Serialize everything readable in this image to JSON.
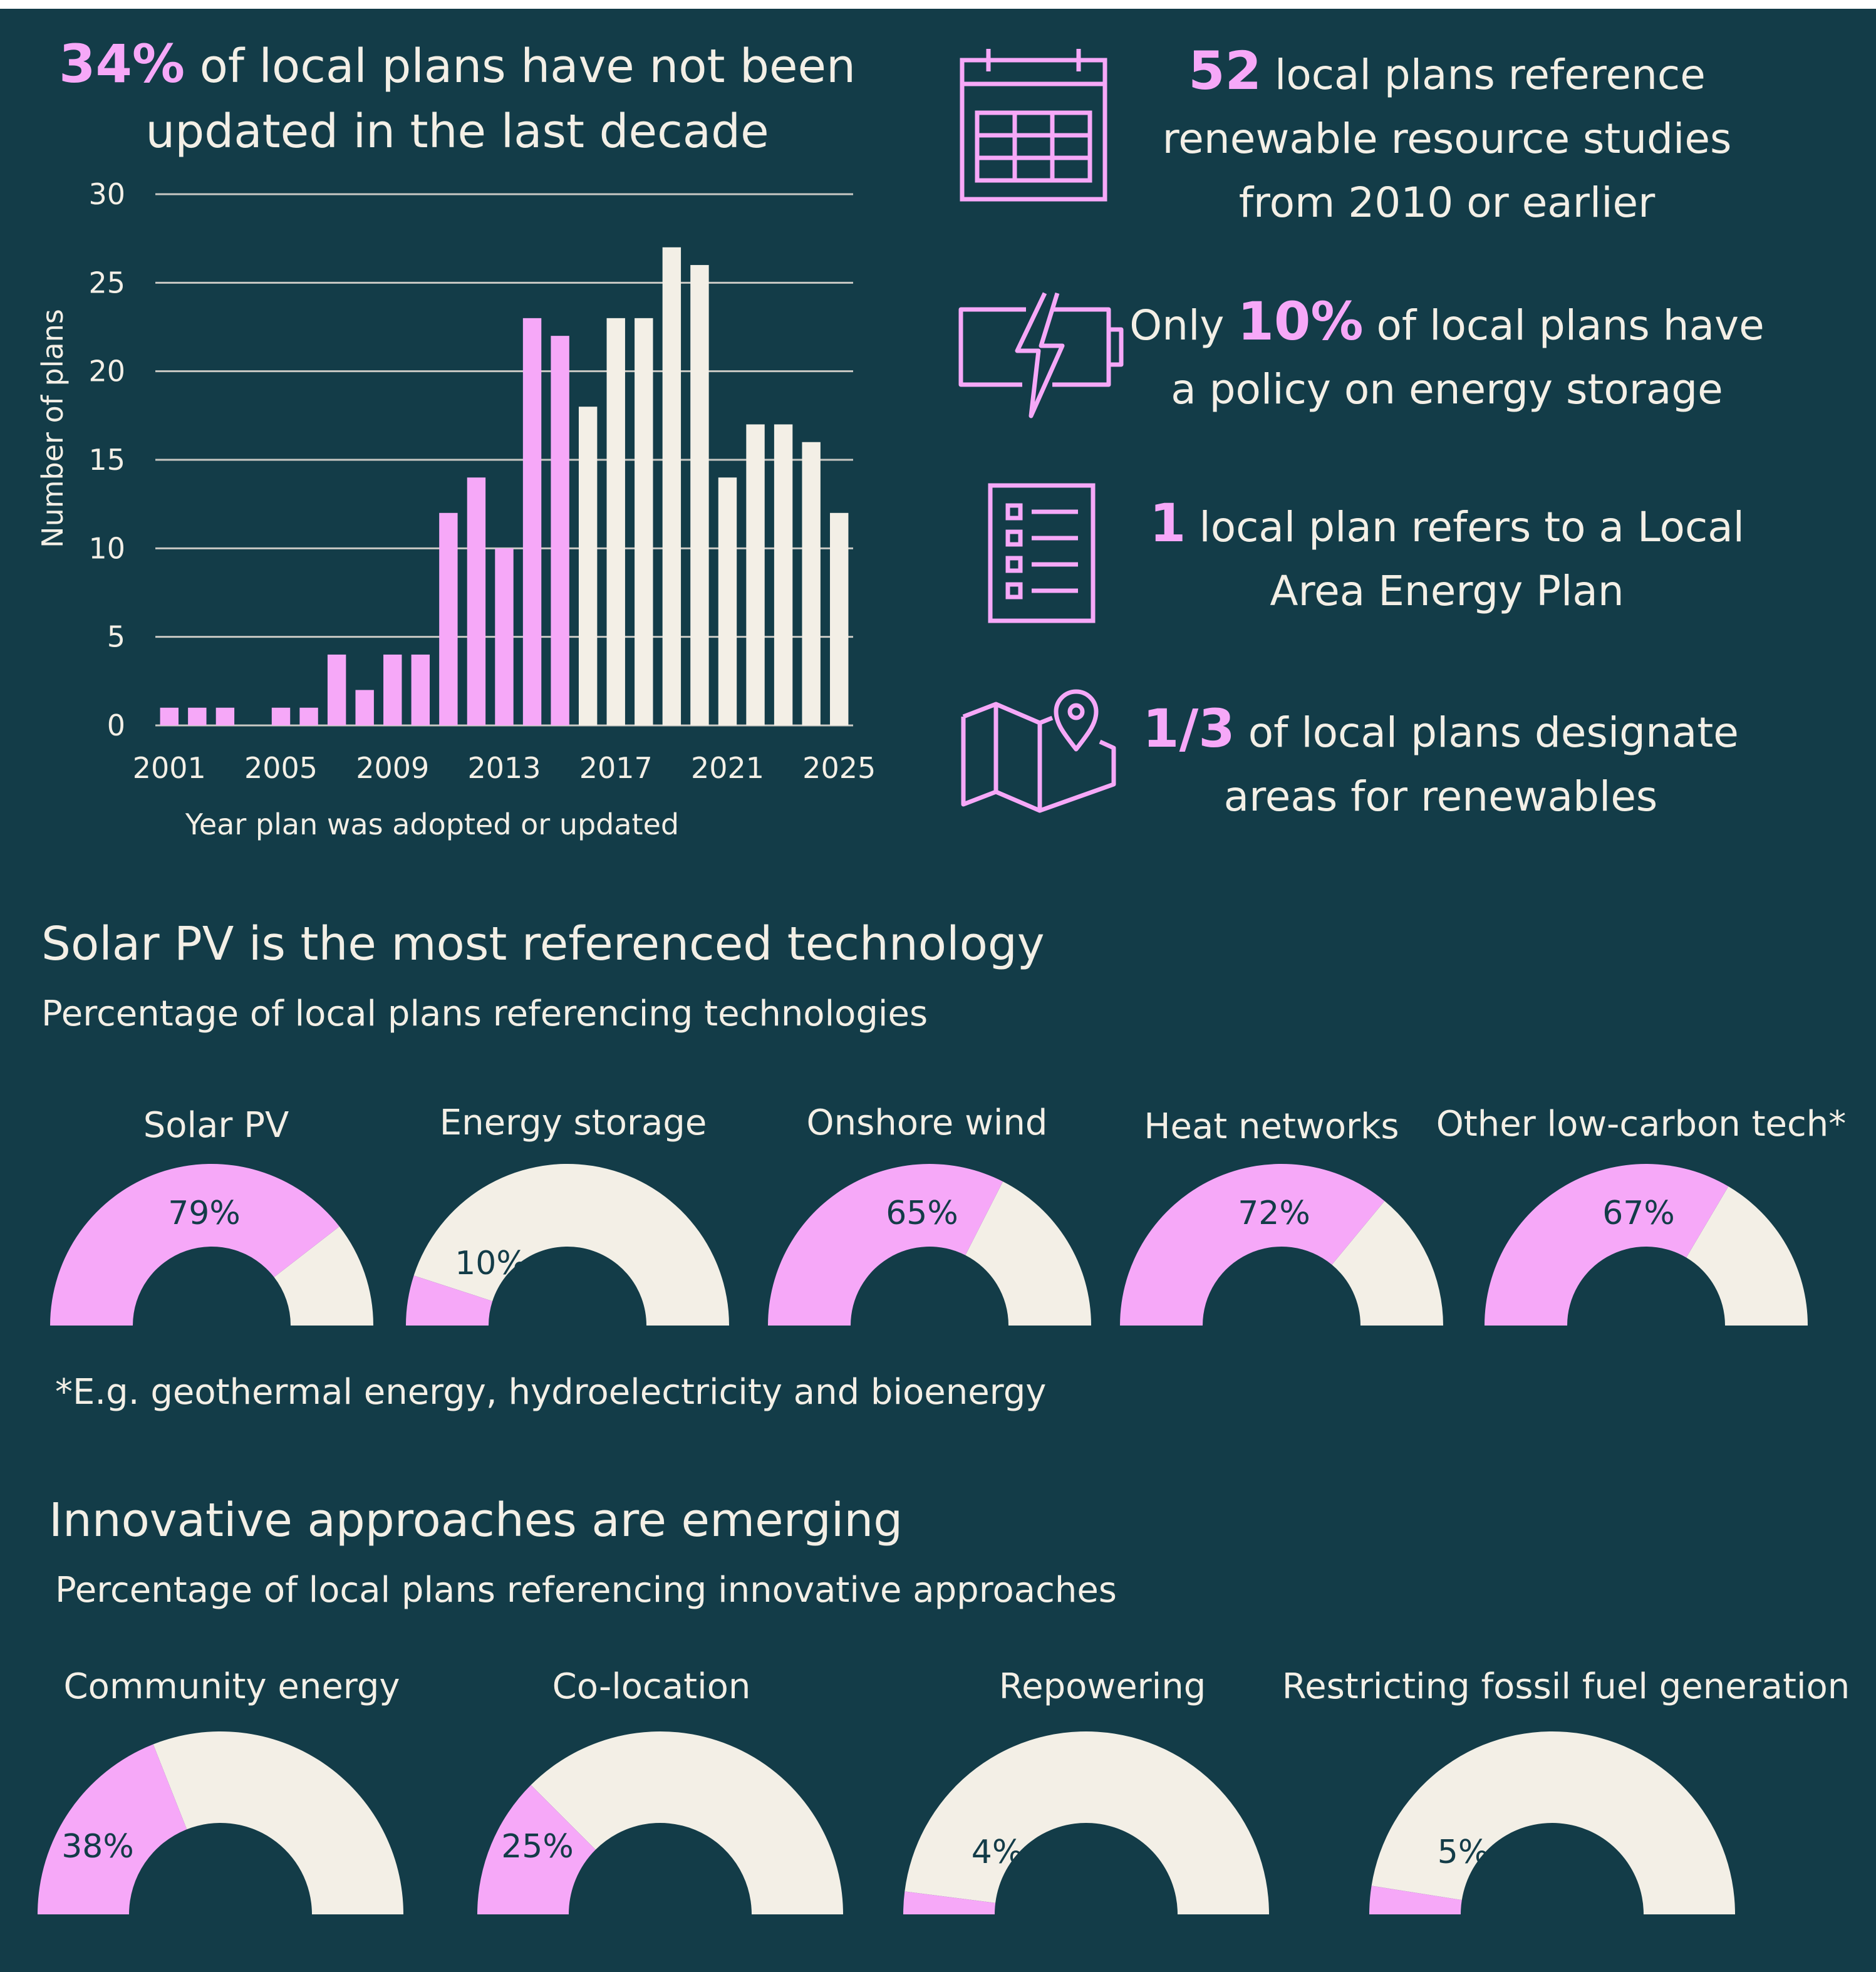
{
  "headline": {
    "pct": "34%",
    "line1": "of local plans have not been",
    "line2": "updated in the last decade"
  },
  "chart_data": {
    "type": "bar",
    "x": [
      2001,
      2002,
      2003,
      2004,
      2005,
      2006,
      2007,
      2008,
      2009,
      2010,
      2011,
      2012,
      2013,
      2014,
      2015,
      2016,
      2017,
      2018,
      2019,
      2020,
      2021,
      2022,
      2023,
      2024,
      2025
    ],
    "values": [
      1,
      1,
      1,
      0,
      1,
      1,
      4,
      2,
      4,
      4,
      12,
      14,
      10,
      23,
      22,
      18,
      23,
      23,
      27,
      26,
      14,
      17,
      17,
      16,
      12
    ],
    "tick_labels_x": [
      "2001",
      "2005",
      "2009",
      "2013",
      "2017",
      "2021",
      "2025"
    ],
    "tick_labels_y": [
      "0",
      "5",
      "10",
      "15",
      "20",
      "25",
      "30"
    ],
    "ylim": [
      0,
      30
    ],
    "xlabel": "Year plan was adopted or updated",
    "ylabel": "Number of plans",
    "grid": true,
    "colors": {
      "older_than_decade": "#f6a8f8",
      "within_decade": "#f3efe6"
    },
    "highlight_last_year": 2015
  },
  "stats": [
    {
      "icon": "calendar-icon",
      "num": "52",
      "lines": [
        "local plans reference",
        "renewable resource studies",
        "from 2010 or earlier"
      ]
    },
    {
      "icon": "battery-bolt-icon",
      "pre": "Only",
      "num": "10%",
      "lines": [
        "of local plans have",
        "a policy on energy storage"
      ]
    },
    {
      "icon": "checklist-icon",
      "num": "1",
      "lines": [
        "local plan refers to a Local",
        "Area Energy Plan"
      ]
    },
    {
      "icon": "map-pin-icon",
      "num": "1/3",
      "lines": [
        "of local plans designate",
        "areas for renewables"
      ]
    }
  ],
  "tech": {
    "title": "Solar PV is the most referenced technology",
    "subtitle": "Percentage of local plans referencing technologies",
    "footnote": "*E.g. geothermal energy, hydroelectricity and bioenergy",
    "gauges": [
      {
        "label": "Solar PV",
        "value": 79,
        "text": "79%"
      },
      {
        "label": "Energy storage",
        "value": 10,
        "text": "10%"
      },
      {
        "label": "Onshore wind",
        "value": 65,
        "text": "65%"
      },
      {
        "label": "Heat networks",
        "value": 72,
        "text": "72%"
      },
      {
        "label": "Other low-carbon tech*",
        "value": 67,
        "text": "67%"
      }
    ]
  },
  "innov": {
    "title": "Innovative approaches are emerging",
    "subtitle": "Percentage of local plans referencing innovative approaches",
    "gauges": [
      {
        "label": "Community energy",
        "value": 38,
        "text": "38%"
      },
      {
        "label": "Co-location",
        "value": 25,
        "text": "25%"
      },
      {
        "label": "Repowering",
        "value": 4,
        "text": "4%"
      },
      {
        "label": "Restricting fossil fuel generation",
        "value": 5,
        "text": "5%"
      }
    ]
  },
  "colors": {
    "background": "#133c48",
    "accent": "#f6a8f8",
    "cream": "#f3efe6",
    "dark_text": "#133c48"
  }
}
